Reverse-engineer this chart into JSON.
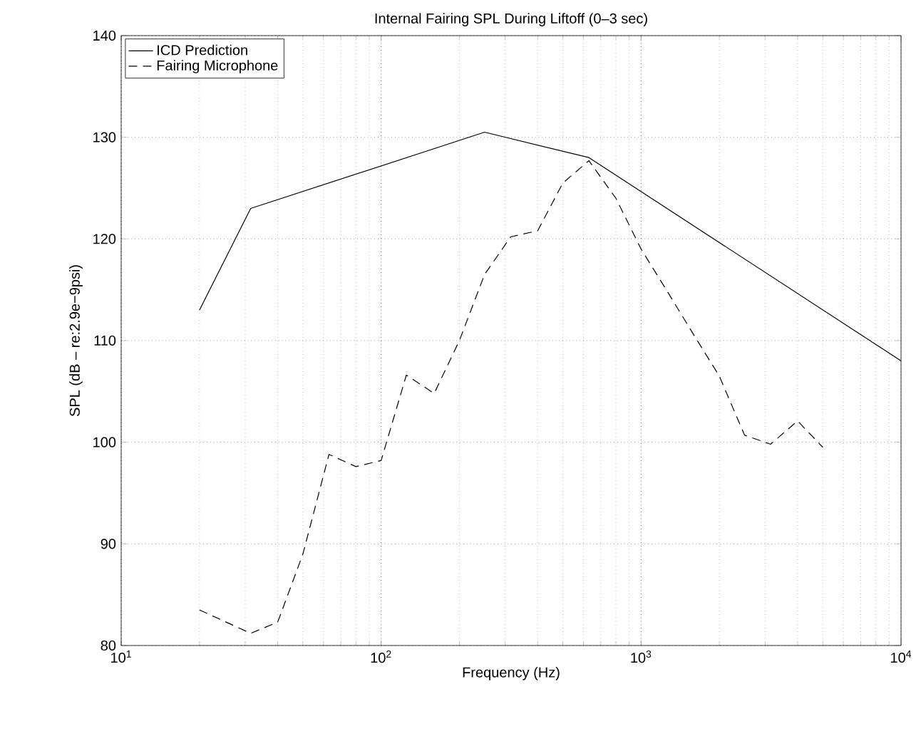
{
  "chart_data": {
    "type": "line",
    "title": "Internal Fairing SPL During Liftoff (0–3 sec)",
    "xlabel": "Frequency (Hz)",
    "ylabel": "SPL (dB – re:2.9e−9psi)",
    "log": "x",
    "grid": true,
    "legend": "top left",
    "marker": "none",
    "xlim": [
      10,
      10000
    ],
    "xticks": [
      {
        "value": 10,
        "label": "10$^{1}$"
      },
      {
        "value": 100,
        "label": "10$^{2}$"
      },
      {
        "value": 1000,
        "label": "10$^{3}$"
      },
      {
        "value": 10000,
        "label": "10$^{4}$"
      }
    ],
    "ylim": [
      80,
      140
    ],
    "yticks": [
      80,
      90,
      100,
      110,
      120,
      130,
      140
    ],
    "series": [
      {
        "name": "ICD Prediction",
        "color": "#000000",
        "line_style": "solid",
        "x": [
          20,
          31.5,
          250,
          630,
          10000
        ],
        "values": [
          113,
          123,
          130.5,
          128,
          108
        ]
      },
      {
        "name": "Fairing Microphone",
        "color": "#000000",
        "line_style": "dashed",
        "x": [
          20,
          31.5,
          40,
          50,
          63,
          80,
          100,
          125,
          160,
          200,
          250,
          315,
          400,
          500,
          630,
          800,
          1000,
          1250,
          1600,
          2000,
          2500,
          3150,
          4000,
          5000
        ],
        "values": [
          83.5,
          81.2,
          82.3,
          89,
          98.8,
          97.6,
          98.2,
          106.6,
          104.8,
          110,
          116.5,
          120.2,
          120.8,
          125.5,
          127.7,
          124,
          119,
          115,
          110.5,
          106.5,
          100.7,
          99.8,
          102.1,
          99.5
        ]
      }
    ]
  }
}
